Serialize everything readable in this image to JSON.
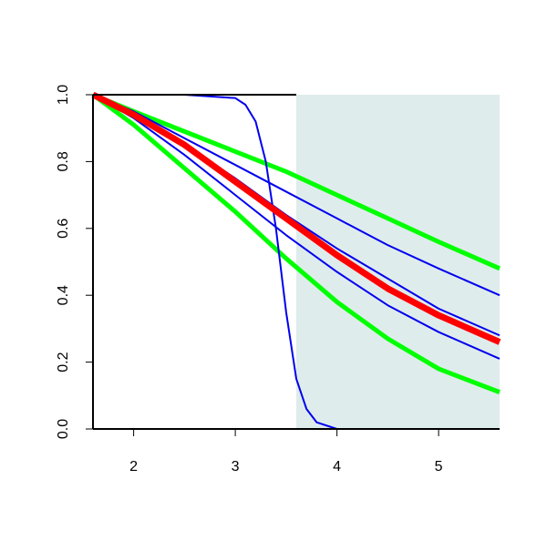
{
  "chart_data": {
    "type": "line",
    "xlim": [
      1.6,
      5.6
    ],
    "ylim": [
      0,
      1
    ],
    "xticks": [
      2,
      3,
      4,
      5
    ],
    "yticks": [
      {
        "value": 0,
        "label": "0.0"
      },
      0.2,
      0.4,
      0.6,
      0.8,
      {
        "value": 1,
        "label": "1.0"
      }
    ],
    "shaded_xlim": [
      3.6,
      5.6
    ],
    "shade_color": "#dfecec",
    "series": [
      {
        "color": "#00ff00",
        "x": [
          1.6,
          2,
          2.5,
          3,
          3.5,
          4,
          4.5,
          5,
          5.6
        ],
        "values": [
          1,
          0.95,
          0.89,
          0.83,
          0.77,
          0.7,
          0.63,
          0.56,
          0.48
        ]
      },
      {
        "color": "#00ff00",
        "x": [
          1.6,
          2,
          2.5,
          3,
          3.5,
          4,
          4.5,
          5,
          5.6
        ],
        "values": [
          1,
          0.91,
          0.78,
          0.65,
          0.51,
          0.38,
          0.27,
          0.18,
          0.11
        ]
      },
      {
        "color": "#0000ee",
        "x": [
          1.6,
          2,
          2.5,
          3,
          3.5,
          4,
          4.5,
          5,
          5.6
        ],
        "values": [
          1,
          0.95,
          0.87,
          0.79,
          0.71,
          0.63,
          0.55,
          0.48,
          0.4
        ]
      },
      {
        "color": "#0000ee",
        "x": [
          1.6,
          2,
          2.5,
          3,
          3.5,
          4,
          4.5,
          5,
          5.6
        ],
        "values": [
          1,
          0.94,
          0.85,
          0.75,
          0.64,
          0.54,
          0.45,
          0.36,
          0.28
        ]
      },
      {
        "color": "#0000ee",
        "x": [
          1.6,
          2,
          2.5,
          3,
          3.5,
          4,
          4.5,
          5,
          5.6
        ],
        "values": [
          1,
          0.93,
          0.82,
          0.7,
          0.58,
          0.47,
          0.37,
          0.29,
          0.21
        ]
      },
      {
        "color": "#0000ee",
        "x": [
          1.6,
          2.5,
          3,
          3.1,
          3.2,
          3.3,
          3.4,
          3.5,
          3.6,
          3.7,
          3.8,
          4,
          5.6
        ],
        "values": [
          1,
          1,
          0.99,
          0.97,
          0.92,
          0.8,
          0.6,
          0.35,
          0.15,
          0.06,
          0.02,
          0,
          0
        ]
      },
      {
        "color": "#ff0000",
        "x": [
          1.6,
          2,
          2.5,
          3,
          3.5,
          4,
          4.5,
          5,
          5.6
        ],
        "values": [
          1,
          0.94,
          0.85,
          0.74,
          0.63,
          0.52,
          0.42,
          0.34,
          0.26
        ]
      }
    ]
  }
}
